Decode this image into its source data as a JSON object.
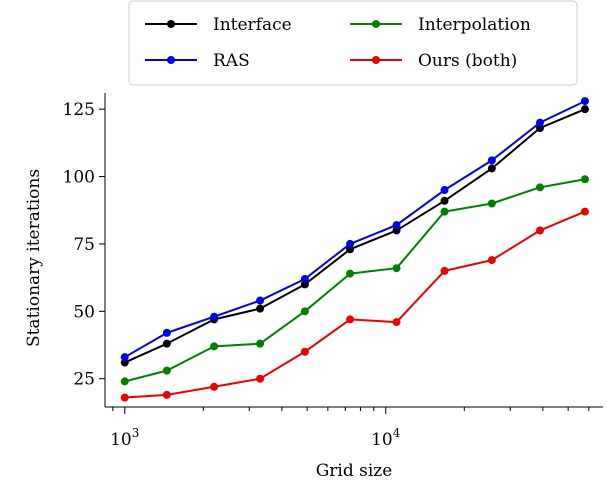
{
  "chart_data": {
    "type": "line",
    "xscale": "log",
    "x": [
      1000,
      1450,
      2200,
      3300,
      4900,
      7300,
      11000,
      16800,
      25500,
      39000,
      58000
    ],
    "series": [
      {
        "name": "Interface",
        "color": "#000000",
        "values": [
          31,
          38,
          47,
          51,
          60,
          73,
          80,
          91,
          103,
          118,
          125
        ]
      },
      {
        "name": "RAS",
        "color": "#0000ee",
        "values": [
          33,
          42,
          48,
          54,
          62,
          75,
          82,
          95,
          106,
          120,
          128
        ]
      },
      {
        "name": "Interpolation",
        "color": "#008000",
        "values": [
          24,
          28,
          37,
          38,
          50,
          64,
          66,
          87,
          90,
          96,
          99
        ]
      },
      {
        "name": "Ours (both)",
        "color": "#ee0000",
        "values": [
          18,
          19,
          22,
          25,
          35,
          47,
          46,
          65,
          69,
          80,
          87
        ]
      }
    ],
    "xlabel": "Grid size",
    "ylabel": "Stationary iterations",
    "xlim": [
      840,
      68000
    ],
    "ylim": [
      14.5,
      131
    ],
    "yticks": [
      25,
      50,
      75,
      100,
      125
    ],
    "xticks": [
      {
        "value": 1000,
        "base": "10",
        "exp": "3"
      },
      {
        "value": 10000,
        "base": "10",
        "exp": "4"
      }
    ],
    "legend": "top-center",
    "grid": false
  }
}
